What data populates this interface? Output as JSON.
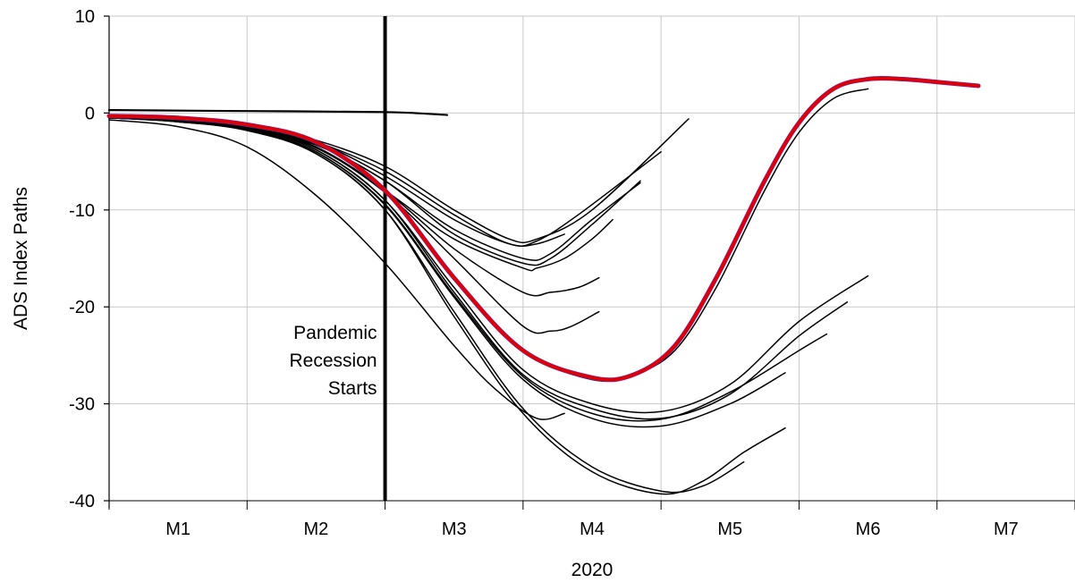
{
  "chart_data": {
    "type": "line",
    "title": "",
    "xlabel": "2020",
    "ylabel": "ADS Index Paths",
    "ylim": [
      -40,
      10
    ],
    "yticks": [
      10,
      0,
      -10,
      -20,
      -30,
      -40
    ],
    "xlim": [
      0,
      7
    ],
    "x_units": "months from start of 2020",
    "categories": [
      "M1",
      "M2",
      "M3",
      "M4",
      "M5",
      "M6",
      "M7"
    ],
    "grid": true,
    "annotations": [
      {
        "x": 2.0,
        "lines": [
          "Pandemic",
          "Recession",
          "Starts"
        ]
      }
    ],
    "colors": {
      "highlight": "#e00000",
      "highlight_edge": "#7a1fa0",
      "paths": "#000000"
    },
    "series": [
      {
        "x": [
          0,
          1.0,
          2.0,
          2.45
        ],
        "y": [
          0.3,
          0.2,
          0.1,
          -0.2
        ]
      },
      {
        "x": [
          0,
          0.5,
          1.0,
          1.5,
          2.0,
          2.5,
          3.0,
          3.1,
          3.3,
          3.5,
          3.65
        ],
        "y": [
          -0.5,
          -0.8,
          -1.6,
          -3.5,
          -8.0,
          -13.0,
          -16.0,
          -16.0,
          -15.0,
          -13.0,
          -11.0
        ]
      },
      {
        "x": [
          0,
          0.5,
          1.0,
          1.5,
          2.0,
          2.5,
          2.9,
          3.1,
          3.3
        ],
        "y": [
          -0.5,
          -0.8,
          -1.4,
          -3.0,
          -6.5,
          -11.0,
          -13.5,
          -13.5,
          -12.5
        ]
      },
      {
        "x": [
          0,
          0.5,
          1.0,
          1.5,
          2.0,
          2.5,
          2.9,
          3.1,
          3.4,
          4.0
        ],
        "y": [
          -0.5,
          -0.8,
          -1.4,
          -3.0,
          -6.0,
          -10.5,
          -13.5,
          -13.2,
          -10.5,
          -4.0
        ]
      },
      {
        "x": [
          0,
          0.5,
          1.0,
          1.5,
          2.0,
          2.5,
          2.9,
          3.1,
          3.5,
          4.2
        ],
        "y": [
          -0.5,
          -0.8,
          -1.3,
          -2.8,
          -5.5,
          -10.0,
          -13.0,
          -13.0,
          -10.0,
          -0.6
        ]
      },
      {
        "x": [
          0,
          0.5,
          1.0,
          1.5,
          2.0,
          2.5,
          3.0,
          3.2,
          3.5,
          3.85
        ],
        "y": [
          -0.5,
          -0.8,
          -1.5,
          -3.2,
          -7.0,
          -12.0,
          -15.0,
          -14.5,
          -11.0,
          -7.2
        ]
      },
      {
        "x": [
          0,
          0.5,
          1.0,
          1.5,
          2.0,
          2.5,
          3.0,
          3.2,
          3.5,
          3.85
        ],
        "y": [
          -0.5,
          -0.8,
          -1.5,
          -3.3,
          -7.0,
          -12.5,
          -15.5,
          -15.0,
          -11.5,
          -7.0
        ]
      },
      {
        "x": [
          0,
          0.5,
          1.0,
          1.5,
          2.0,
          2.5,
          3.0,
          3.2,
          3.4,
          3.55
        ],
        "y": [
          -0.5,
          -0.8,
          -1.5,
          -3.5,
          -8.0,
          -14.0,
          -18.5,
          -18.5,
          -18.0,
          -17.0
        ]
      },
      {
        "x": [
          0,
          0.5,
          1.0,
          1.5,
          2.0,
          2.5,
          3.0,
          3.2,
          3.35,
          3.55
        ],
        "y": [
          -0.5,
          -0.8,
          -1.6,
          -3.6,
          -8.2,
          -15.0,
          -22.0,
          -22.5,
          -22.0,
          -20.5
        ]
      },
      {
        "x": [
          0,
          0.5,
          1.0,
          1.5,
          2.0,
          2.5,
          3.0,
          3.5,
          4.0,
          4.5,
          5.0,
          5.35
        ],
        "y": [
          -0.5,
          -0.8,
          -1.6,
          -3.8,
          -9.0,
          -18.5,
          -27.0,
          -30.5,
          -31.5,
          -29.0,
          -23.0,
          -19.5
        ]
      },
      {
        "x": [
          0,
          0.5,
          1.0,
          1.5,
          2.0,
          2.5,
          3.0,
          3.5,
          4.0,
          4.5,
          5.0,
          5.5
        ],
        "y": [
          -0.5,
          -0.8,
          -1.6,
          -3.8,
          -9.0,
          -18.0,
          -26.5,
          -30.0,
          -30.8,
          -28.0,
          -21.5,
          -16.8
        ]
      },
      {
        "x": [
          0,
          0.5,
          1.0,
          1.5,
          2.0,
          2.5,
          3.0,
          3.5,
          4.0,
          4.5,
          4.9
        ],
        "y": [
          -0.5,
          -0.8,
          -1.7,
          -4.0,
          -9.5,
          -19.0,
          -27.5,
          -31.5,
          -32.3,
          -30.0,
          -26.8
        ]
      },
      {
        "x": [
          0,
          0.5,
          1.0,
          1.5,
          2.0,
          2.5,
          3.0,
          3.5,
          4.0,
          4.5,
          5.0,
          5.2
        ],
        "y": [
          -0.5,
          -0.8,
          -1.7,
          -4.0,
          -9.4,
          -18.8,
          -27.2,
          -31.0,
          -31.6,
          -28.8,
          -24.5,
          -22.8
        ]
      },
      {
        "x": [
          0,
          0.5,
          1.0,
          1.5,
          2.0,
          2.5,
          3.0,
          3.5,
          4.0,
          4.3,
          4.6,
          4.9
        ],
        "y": [
          -0.5,
          -0.9,
          -1.8,
          -4.2,
          -10.0,
          -21.0,
          -31.0,
          -37.0,
          -39.3,
          -38.0,
          -35.0,
          -32.5
        ]
      },
      {
        "x": [
          0,
          0.5,
          1.0,
          1.5,
          2.0,
          2.5,
          3.0,
          3.5,
          4.0,
          4.3,
          4.6
        ],
        "y": [
          -0.5,
          -0.9,
          -1.8,
          -4.2,
          -10.0,
          -20.5,
          -30.5,
          -36.5,
          -39.0,
          -38.5,
          -36.0
        ]
      },
      {
        "x": [
          0,
          0.5,
          1.0,
          1.5,
          2.0,
          2.5,
          2.8,
          3.1,
          3.3
        ],
        "y": [
          -0.7,
          -1.4,
          -3.5,
          -8.5,
          -15.5,
          -24.0,
          -28.5,
          -31.5,
          -31.0
        ]
      },
      {
        "x": [
          0,
          0.5,
          1.0,
          1.5,
          2.0,
          2.5,
          3.0,
          3.5,
          3.8,
          4.1,
          4.4,
          4.75,
          5.0,
          5.25,
          5.5
        ],
        "y": [
          -0.3,
          -0.5,
          -1.3,
          -3.0,
          -8.0,
          -17.0,
          -24.5,
          -27.5,
          -27.0,
          -24.5,
          -18.0,
          -8.0,
          -2.0,
          1.5,
          2.5
        ]
      },
      {
        "x": [
          0,
          0.5,
          1.0,
          1.5,
          2.0,
          2.5,
          3.0,
          3.5,
          3.8,
          4.1,
          4.4,
          4.75,
          5.0,
          5.25,
          5.5,
          5.75,
          6.0,
          6.3
        ],
        "y": [
          -0.3,
          -0.5,
          -1.2,
          -3.0,
          -8.0,
          -17.0,
          -24.5,
          -27.3,
          -27.0,
          -24.0,
          -17.0,
          -7.0,
          -1.0,
          2.5,
          3.5,
          3.5,
          3.2,
          2.8
        ],
        "highlight": true
      }
    ]
  }
}
